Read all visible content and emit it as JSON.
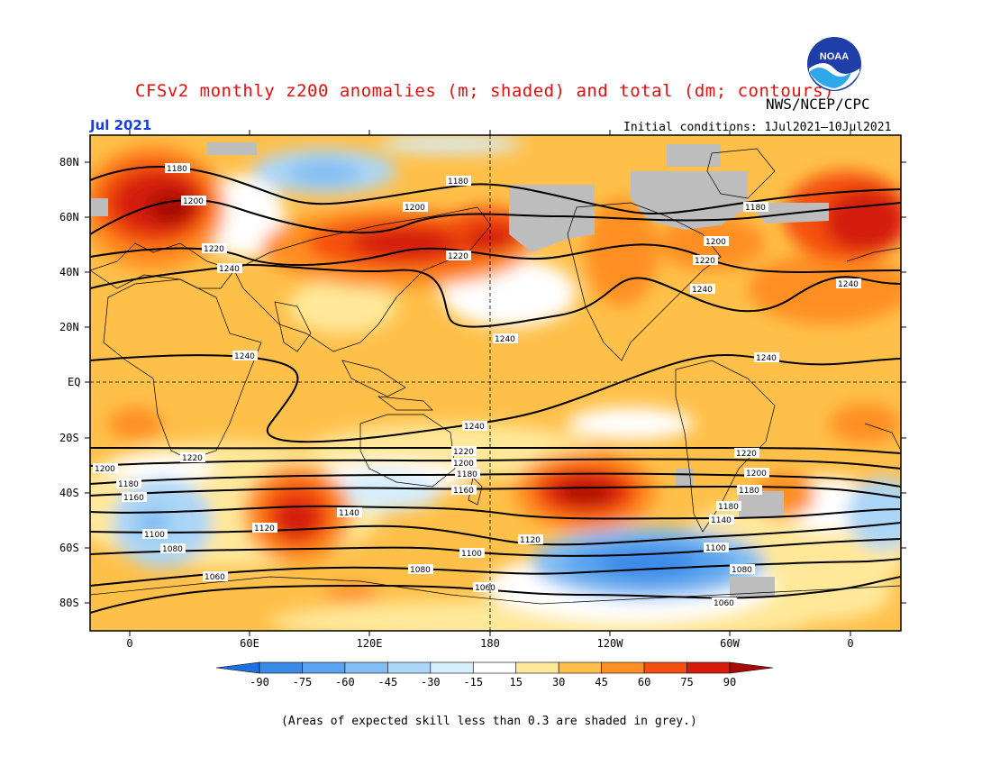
{
  "header": {
    "title": "CFSv2 monthly z200 anomalies (m; shaded) and total (dm; contours)",
    "agency": "NWS/NCEP/CPC",
    "month": "Jul 2021",
    "initial_conditions": "Initial conditions: 1Jul2021–10Jul2021"
  },
  "logo": {
    "text": "NOAA",
    "icon": "noaa-logo"
  },
  "map": {
    "lat_labels": [
      "80N",
      "60N",
      "40N",
      "20N",
      "EQ",
      "20S",
      "40S",
      "60S",
      "80S"
    ],
    "lon_labels": [
      "0",
      "60E",
      "120E",
      "180",
      "120W",
      "60W",
      "0"
    ],
    "contour_labels": [
      "1180",
      "1200",
      "1220",
      "1240",
      "1160",
      "1140",
      "1120",
      "1100",
      "1080",
      "1060"
    ]
  },
  "legend": {
    "ticks": [
      "-90",
      "-75",
      "-60",
      "-45",
      "-30",
      "-15",
      "15",
      "30",
      "45",
      "60",
      "75",
      "90"
    ],
    "colors": [
      "#1f6fe0",
      "#3a8ae8",
      "#5aa3ee",
      "#82bdf3",
      "#acd6f7",
      "#d6edfb",
      "#ffffff",
      "#ffe89a",
      "#ffc04a",
      "#ff8f22",
      "#f54f10",
      "#d41c08",
      "#a50a05"
    ]
  },
  "footnote": "(Areas of expected skill less than 0.3 are shaded in grey.)"
}
